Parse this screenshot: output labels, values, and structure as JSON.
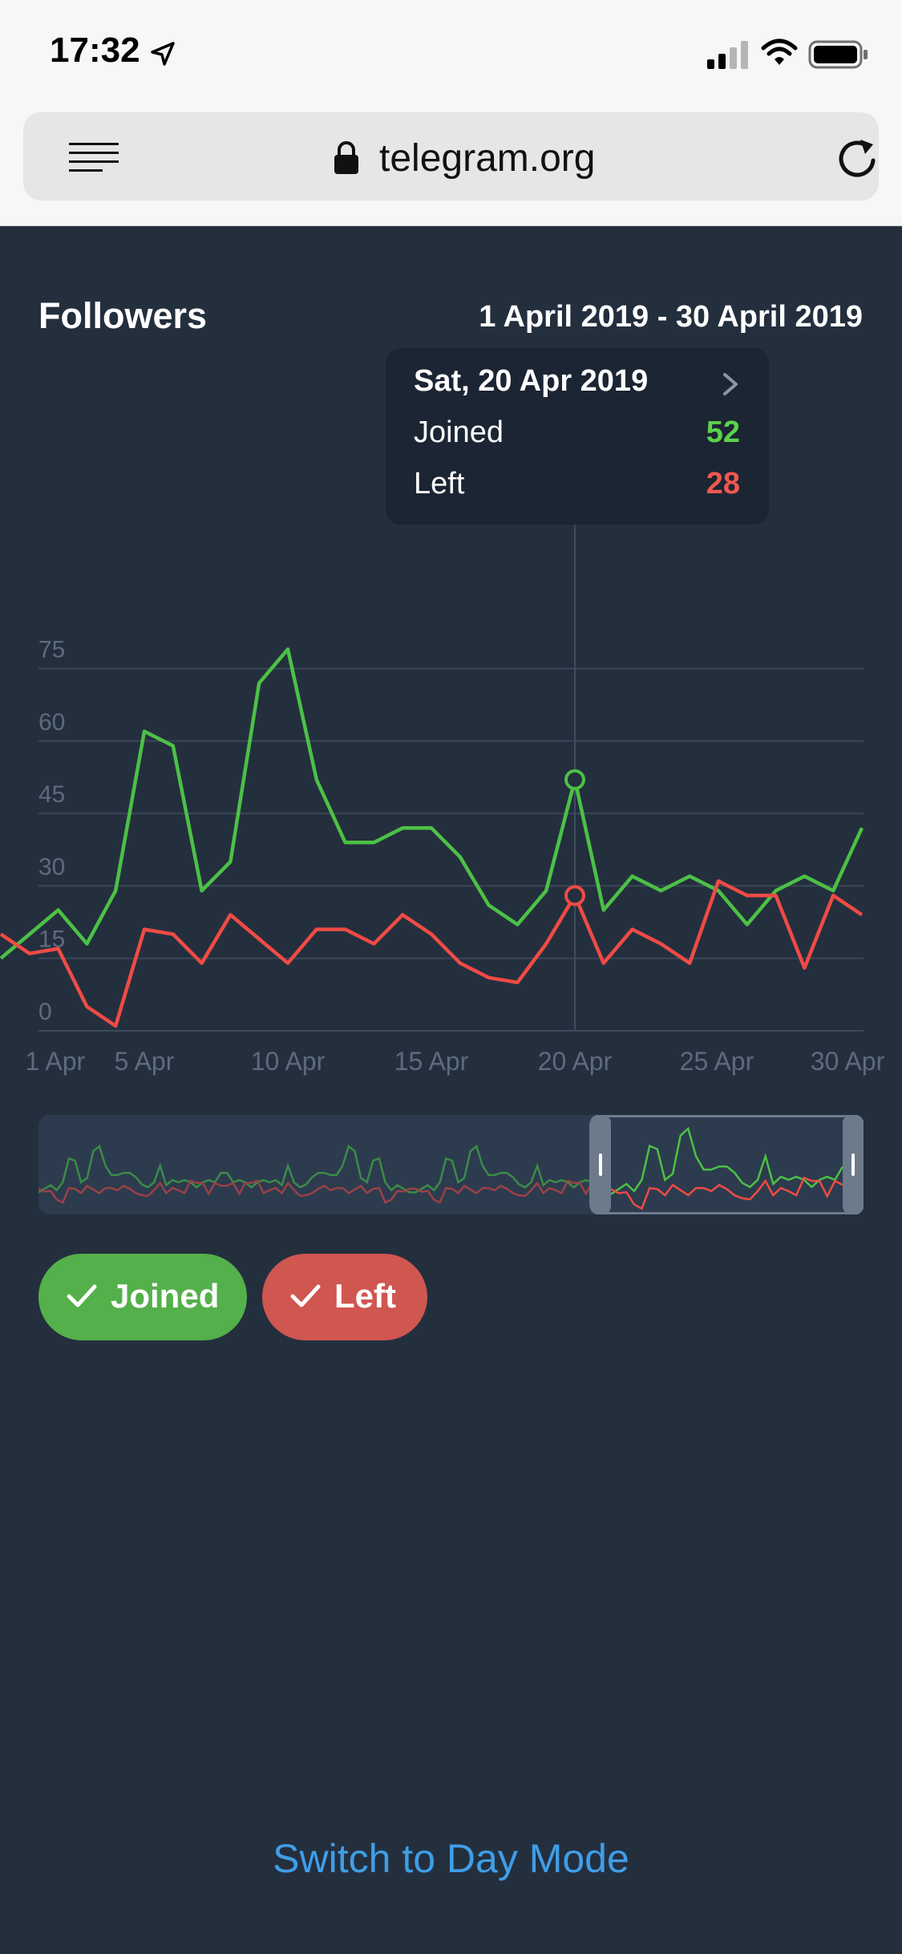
{
  "status_bar": {
    "time": "17:32"
  },
  "browser": {
    "url": "telegram.org"
  },
  "chart_data": {
    "type": "line",
    "title": "Followers",
    "date_range": "1 April 2019 - 30 April 2019",
    "x_tick_labels": [
      "1 Apr",
      "5 Apr",
      "10 Apr",
      "15 Apr",
      "20 Apr",
      "25 Apr",
      "30 Apr"
    ],
    "y_tick_labels": [
      "0",
      "15",
      "30",
      "45",
      "60",
      "75"
    ],
    "ylim": [
      0,
      80
    ],
    "grid": true,
    "x": [
      "31 Mar",
      "1 Apr",
      "2 Apr",
      "3 Apr",
      "4 Apr",
      "5 Apr",
      "6 Apr",
      "7 Apr",
      "8 Apr",
      "9 Apr",
      "10 Apr",
      "11 Apr",
      "12 Apr",
      "13 Apr",
      "14 Apr",
      "15 Apr",
      "16 Apr",
      "17 Apr",
      "18 Apr",
      "19 Apr",
      "20 Apr",
      "21 Apr",
      "22 Apr",
      "23 Apr",
      "24 Apr",
      "25 Apr",
      "26 Apr",
      "27 Apr",
      "28 Apr",
      "29 Apr",
      "30 Apr"
    ],
    "series": [
      {
        "name": "Joined",
        "color": "#4cc145",
        "values": [
          15,
          20,
          25,
          18,
          29,
          62,
          59,
          29,
          35,
          72,
          79,
          52,
          39,
          39,
          42,
          42,
          36,
          26,
          22,
          29,
          52,
          25,
          32,
          29,
          32,
          29,
          22,
          29,
          32,
          29,
          42
        ]
      },
      {
        "name": "Left",
        "color": "#ef4b45",
        "values": [
          20,
          16,
          17,
          5,
          1,
          21,
          20,
          14,
          24,
          19,
          14,
          21,
          21,
          18,
          24,
          20,
          14,
          11,
          10,
          18,
          28,
          14,
          21,
          18,
          14,
          31,
          28,
          28,
          13,
          28,
          24
        ]
      }
    ],
    "highlight_index": 20
  },
  "tooltip": {
    "date": "Sat, 20 Apr 2019",
    "row1_label": "Joined",
    "row1_value": "52",
    "row2_label": "Left",
    "row2_value": "28"
  },
  "toggles": {
    "joined_label": "Joined",
    "left_label": "Left"
  },
  "footer": {
    "switch_mode_label": "Switch to Day Mode"
  },
  "icons": {
    "status": [
      "location-arrow-icon",
      "signal-icon",
      "wifi-icon",
      "battery-icon"
    ],
    "browser": [
      "menu-icon",
      "lock-icon",
      "reload-icon"
    ],
    "tooltip": [
      "chevron-right-icon"
    ],
    "toggles": [
      "checkmark-icon"
    ]
  }
}
